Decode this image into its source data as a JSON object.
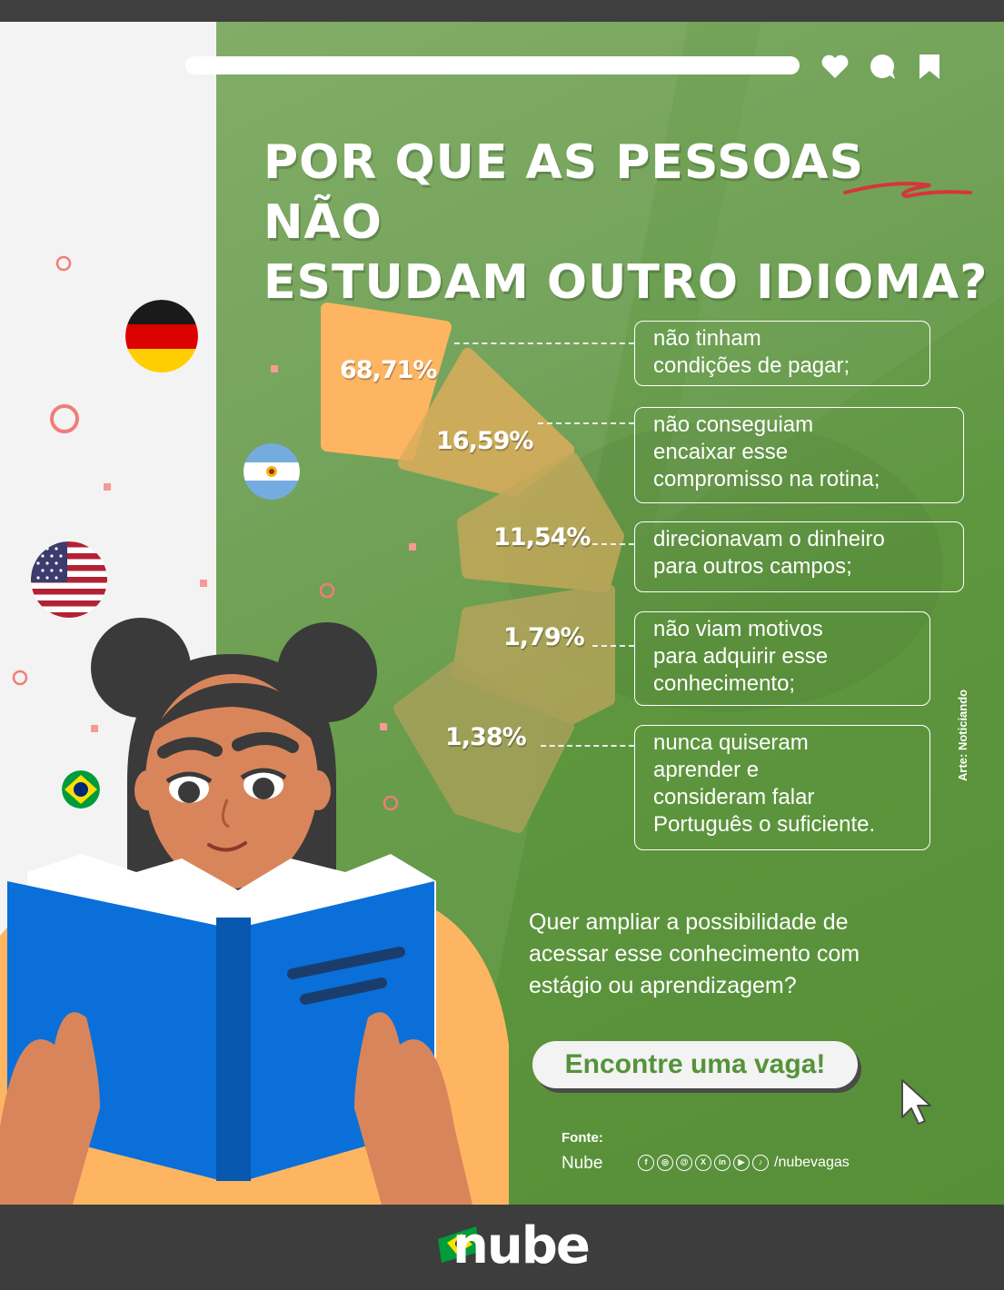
{
  "header": {
    "title_line1_pre": "POR QUE AS PESSOAS ",
    "title_line1_emph": "NÃO",
    "title_line2": "ESTUDAM OUTRO IDIOMA?"
  },
  "chart_data": {
    "type": "bar",
    "categories": [
      "não tinham condições de pagar;",
      "não conseguiam encaixar esse compromisso na rotina;",
      "direcionavam o dinheiro para outros campos;",
      "não viam motivos para adquirir esse conhecimento;",
      "nunca quiseram aprender e consideram falar Português o suficiente."
    ],
    "values": [
      68.71,
      16.59,
      11.54,
      1.79,
      1.38
    ],
    "value_labels": [
      "68,71%",
      "16,59%",
      "11,54%",
      "1,79%",
      "1,38%"
    ],
    "unit": "%",
    "colors": [
      "#fdb562",
      "#dcad5c",
      "#c2a85a",
      "#b3a45a",
      "#a8a05a"
    ]
  },
  "reasons": [
    [
      "não tinham",
      "condições de pagar;"
    ],
    [
      "não conseguiam",
      "encaixar esse",
      "compromisso na rotina;"
    ],
    [
      "direcionavam o dinheiro",
      "para outros campos;"
    ],
    [
      "não viam motivos",
      "para adquirir esse",
      "conhecimento;"
    ],
    [
      "nunca quiseram",
      "aprender e",
      "consideram falar",
      "Português o suficiente."
    ]
  ],
  "cta": {
    "question_lines": [
      "Quer ampliar a possibilidade de",
      "acessar esse conhecimento com",
      "estágio ou aprendizagem?"
    ],
    "button_label": "Encontre uma vaga!"
  },
  "source": {
    "label": "Fonte:",
    "value": "Nube",
    "social_icons": [
      "facebook-icon",
      "instagram-icon",
      "threads-icon",
      "x-icon",
      "linkedin-icon",
      "youtube-icon",
      "tiktok-icon"
    ],
    "social_glyphs": [
      "f",
      "◎",
      "@",
      "X",
      "in",
      "▶",
      "♪"
    ],
    "handle": "/nubevagas"
  },
  "credit": "Arte: Noticiando",
  "brand": {
    "logo_text": "nube"
  },
  "colors": {
    "green": "#5e963f",
    "orange": "#fdb562",
    "blue_book": "#0a6fd8",
    "accent_red": "#d8343c"
  }
}
